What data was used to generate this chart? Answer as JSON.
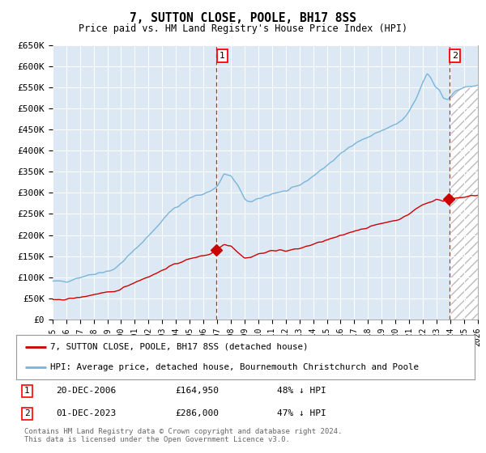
{
  "title": "7, SUTTON CLOSE, POOLE, BH17 8SS",
  "subtitle": "Price paid vs. HM Land Registry's House Price Index (HPI)",
  "ylim": [
    0,
    650000
  ],
  "yticks": [
    0,
    50000,
    100000,
    150000,
    200000,
    250000,
    300000,
    350000,
    400000,
    450000,
    500000,
    550000,
    600000,
    650000
  ],
  "ytick_labels": [
    "£0",
    "£50K",
    "£100K",
    "£150K",
    "£200K",
    "£250K",
    "£300K",
    "£350K",
    "£400K",
    "£450K",
    "£500K",
    "£550K",
    "£600K",
    "£650K"
  ],
  "hpi_color": "#7ab4d8",
  "hpi_fill_color": "#dce9f5",
  "price_color": "#cc0000",
  "vline_color": "#cc0000",
  "marker_color": "#cc0000",
  "sale1_date": 2006.96,
  "sale1_price": 164950,
  "sale2_date": 2023.92,
  "sale2_price": 286000,
  "legend_label1": "7, SUTTON CLOSE, POOLE, BH17 8SS (detached house)",
  "legend_label2": "HPI: Average price, detached house, Bournemouth Christchurch and Poole",
  "annotation1_date_str": "20-DEC-2006",
  "annotation1_price_str": "£164,950",
  "annotation1_pct": "48% ↓ HPI",
  "annotation2_date_str": "01-DEC-2023",
  "annotation2_price_str": "£286,000",
  "annotation2_pct": "47% ↓ HPI",
  "footer": "Contains HM Land Registry data © Crown copyright and database right 2024.\nThis data is licensed under the Open Government Licence v3.0.",
  "background_color": "#ffffff",
  "plot_bg_color": "#dce9f5",
  "hpi_anchors_x": [
    1995.0,
    1996.0,
    1997.0,
    1998.0,
    1999.5,
    2001.0,
    2002.5,
    2003.5,
    2004.5,
    2005.0,
    2005.5,
    2006.0,
    2006.5,
    2007.0,
    2007.5,
    2008.0,
    2008.5,
    2009.0,
    2009.5,
    2010.0,
    2010.5,
    2011.0,
    2011.5,
    2012.0,
    2012.5,
    2013.0,
    2013.5,
    2014.0,
    2014.5,
    2015.0,
    2015.5,
    2016.0,
    2016.5,
    2017.0,
    2017.5,
    2018.0,
    2018.5,
    2019.0,
    2019.5,
    2020.0,
    2020.5,
    2021.0,
    2021.5,
    2022.0,
    2022.3,
    2022.6,
    2022.9,
    2023.2,
    2023.5,
    2023.8,
    2024.0,
    2024.5,
    2025.0,
    2025.5,
    2026.0
  ],
  "hpi_anchors_y": [
    90000,
    90000,
    100000,
    108000,
    118000,
    165000,
    215000,
    255000,
    275000,
    287000,
    294000,
    298000,
    304000,
    315000,
    345000,
    340000,
    318000,
    285000,
    278000,
    285000,
    292000,
    298000,
    302000,
    304000,
    310000,
    318000,
    328000,
    340000,
    352000,
    365000,
    378000,
    392000,
    405000,
    418000,
    425000,
    432000,
    440000,
    448000,
    455000,
    462000,
    472000,
    492000,
    522000,
    562000,
    582000,
    572000,
    552000,
    545000,
    525000,
    522000,
    530000,
    543000,
    550000,
    552000,
    555000
  ],
  "price_anchors_x": [
    1995.0,
    1996.0,
    1997.0,
    1998.5,
    1999.5,
    2001.0,
    2002.5,
    2003.5,
    2004.5,
    2005.5,
    2006.5,
    2006.96,
    2007.5,
    2008.0,
    2008.5,
    2009.0,
    2009.5,
    2010.0,
    2010.5,
    2011.0,
    2011.5,
    2012.0,
    2013.0,
    2014.0,
    2015.0,
    2016.0,
    2017.0,
    2018.0,
    2019.0,
    2020.0,
    2020.5,
    2021.0,
    2021.5,
    2022.0,
    2022.5,
    2023.0,
    2023.5,
    2023.92,
    2024.5,
    2025.0,
    2026.0
  ],
  "price_anchors_y": [
    45000,
    48000,
    52000,
    62000,
    65000,
    88000,
    108000,
    125000,
    138000,
    148000,
    155000,
    164950,
    178000,
    175000,
    160000,
    145000,
    148000,
    155000,
    158000,
    163000,
    165000,
    162000,
    168000,
    178000,
    188000,
    198000,
    210000,
    218000,
    228000,
    235000,
    240000,
    250000,
    262000,
    272000,
    278000,
    285000,
    280000,
    286000,
    288000,
    290000,
    295000
  ]
}
